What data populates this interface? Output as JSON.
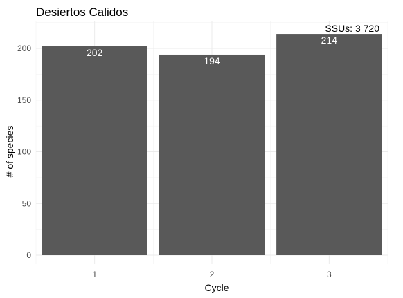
{
  "chart_data": {
    "type": "bar",
    "title": "Desiertos Calidos",
    "xlabel": "Cycle",
    "ylabel": "# of species",
    "categories": [
      "1",
      "2",
      "3"
    ],
    "values": [
      202,
      194,
      214
    ],
    "bar_labels": [
      "202",
      "194",
      "214"
    ],
    "ylim": [
      0,
      220
    ],
    "yticks": [
      0,
      50,
      100,
      150,
      200
    ],
    "annotation": "SSUs: 3 720",
    "bar_color": "#595959",
    "grid": true,
    "legend": "none"
  }
}
